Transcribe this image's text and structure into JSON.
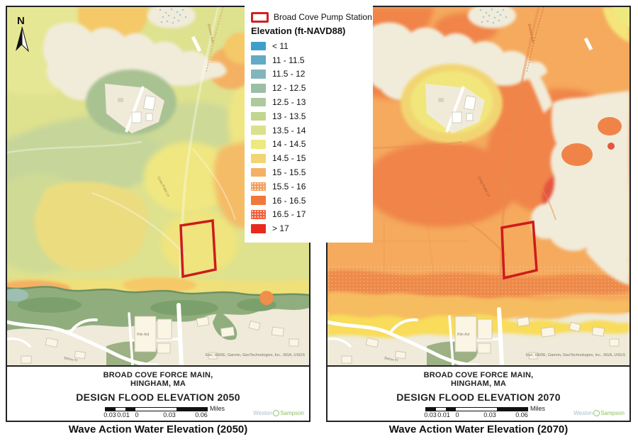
{
  "north_arrow": {
    "label": "N"
  },
  "legend": {
    "pump_station": {
      "label": "Broad Cove Pump Station",
      "outline_color": "#D42020"
    },
    "title": "Elevation (ft-NAVD88)",
    "classes": [
      {
        "label": "< 11",
        "color": "#3E9FCC",
        "textured": false
      },
      {
        "label": "11 - 11.5",
        "color": "#62AAC6",
        "textured": false
      },
      {
        "label": "11.5 - 12",
        "color": "#83B5BC",
        "textured": false
      },
      {
        "label": "12 - 12.5",
        "color": "#9BBFA6",
        "textured": false
      },
      {
        "label": "12.5 - 13",
        "color": "#AECA9C",
        "textured": false
      },
      {
        "label": "13 - 13.5",
        "color": "#C2D68F",
        "textured": false
      },
      {
        "label": "13.5 - 14",
        "color": "#DBE18B",
        "textured": false
      },
      {
        "label": "14 - 14.5",
        "color": "#EEE97E",
        "textured": false
      },
      {
        "label": "14.5 - 15",
        "color": "#F2D572",
        "textured": false
      },
      {
        "label": "15 - 15.5",
        "color": "#F4B163",
        "textured": false
      },
      {
        "label": "15.5 - 16",
        "color": "#F29D5C",
        "textured": true
      },
      {
        "label": "16 - 16.5",
        "color": "#F2773B",
        "textured": false
      },
      {
        "label": "16.5 - 17",
        "color": "#F2603C",
        "textured": true
      },
      {
        "label": "> 17",
        "color": "#E8291D",
        "textured": false
      }
    ]
  },
  "maps": [
    {
      "year": "2050",
      "title_line1": "BROAD COVE FORCE MAIN,",
      "title_line2": "HINGHAM, MA",
      "subtitle": "DESIGN FLOOD ELEVATION 2050",
      "caption": "Wave Action Water Elevation (2050)",
      "attribution": "Esri, HERE, Garmin, GeoTechnologies, Inc., NGA, USGS",
      "scale_unit": "Miles",
      "scale_ticks": [
        "0.03",
        "0.01",
        "0",
        "0.03",
        "0.06"
      ],
      "logo": {
        "left": "Weston",
        "right": "Sampson"
      }
    },
    {
      "year": "2070",
      "title_line1": "BROAD COVE FORCE MAIN,",
      "title_line2": "HINGHAM, MA",
      "subtitle": "DESIGN FLOOD ELEVATION 2070",
      "caption": "Wave Action Water Elevation (2070)",
      "attribution": "Esri, HERE, Garmin, GeoTechnologies, Inc., NGA, USGS",
      "scale_unit": "Miles",
      "scale_ticks": [
        "0.03",
        "0.01",
        "0",
        "0.03",
        "0.06"
      ],
      "logo": {
        "left": "Weston",
        "right": "Sampson"
      }
    }
  ],
  "basemap_labels": {
    "store": "Rite Aid",
    "street": "Below Pl",
    "avenue": "Downer Ave",
    "lane": "Crow Point Ln"
  }
}
